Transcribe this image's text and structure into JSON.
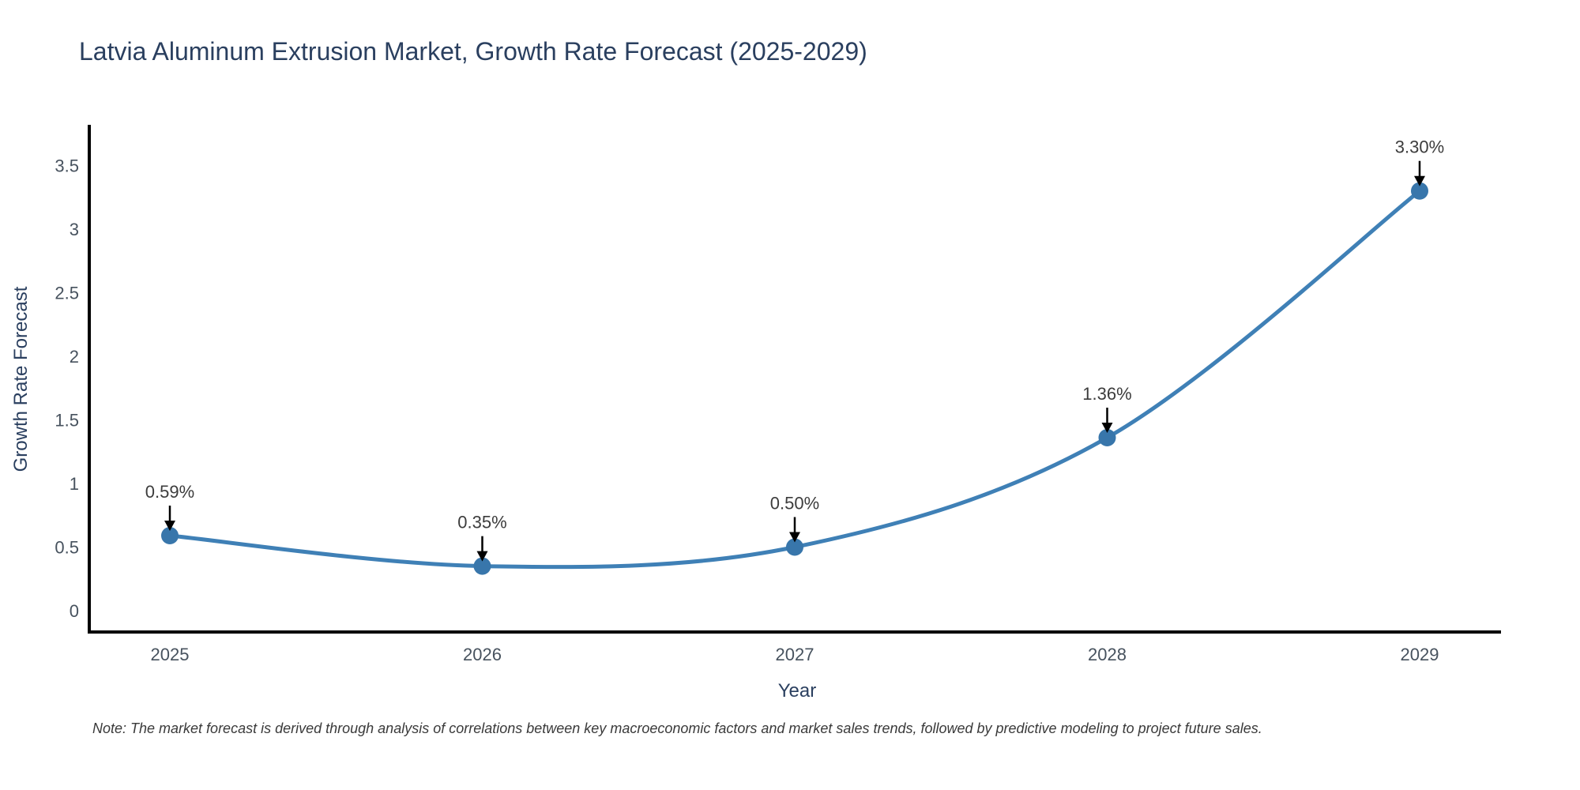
{
  "chart_data": {
    "type": "line",
    "title": "Latvia Aluminum Extrusion Market, Growth Rate Forecast (2025-2029)",
    "xlabel": "Year",
    "ylabel": "Growth Rate Forecast",
    "categories": [
      "2025",
      "2026",
      "2027",
      "2028",
      "2029"
    ],
    "series": [
      {
        "name": "Growth Rate Forecast",
        "values": [
          0.59,
          0.35,
          0.5,
          1.36,
          3.3
        ],
        "point_labels": [
          "0.59%",
          "0.35%",
          "0.50%",
          "1.36%",
          "3.30%"
        ]
      }
    ],
    "yticks": [
      0,
      0.5,
      1,
      1.5,
      2,
      2.5,
      3,
      3.5
    ],
    "ylim": [
      -0.17,
      3.79
    ],
    "line_shape": "spline",
    "grid": false,
    "legend": "none",
    "annotations_style": "value label with downward arrow to each point",
    "note": "Note: The market forecast is derived through analysis of correlations between key macroeconomic factors and market sales trends, followed by predictive modeling to project future sales.",
    "colors": {
      "line": "#3f80b6",
      "marker": "#3876ab",
      "axis_line": "#000000",
      "title": "#2a3f5f",
      "tick_labels": "#47525e",
      "annotation_text": "#3c3c3c",
      "arrow": "#000000",
      "background": "#ffffff"
    }
  }
}
